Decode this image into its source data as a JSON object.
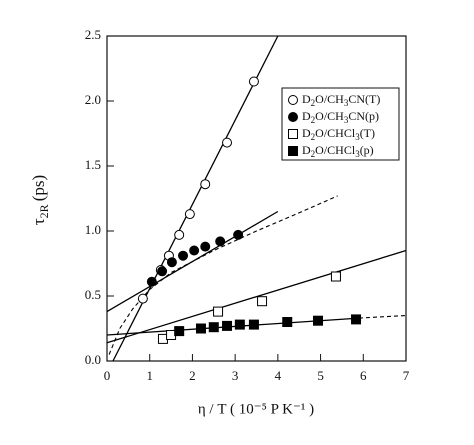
{
  "chart_data": {
    "type": "scatter",
    "x_label": "η / T ( 10⁻⁵ P K⁻¹ )",
    "y_label": {
      "symbol": "τ",
      "subscript": "2R",
      "unit": "(ps)"
    },
    "xlim": [
      0,
      7
    ],
    "ylim": [
      0,
      2.5
    ],
    "xticks": [
      0,
      1,
      2,
      3,
      4,
      5,
      6,
      7
    ],
    "yticks": [
      {
        "value": 0,
        "label": "0.0"
      },
      0.5,
      {
        "value": 1,
        "label": "1.0"
      },
      1.5,
      {
        "value": 2,
        "label": "2.0"
      },
      2.5
    ],
    "legend": "upper right",
    "series": [
      {
        "name": "D2O/CH3CN(T)",
        "marker": "open-circle",
        "color": "#000000",
        "x": [
          0.84,
          1.26,
          1.45,
          1.69,
          1.94,
          2.3,
          2.81,
          3.44
        ],
        "values": [
          0.48,
          0.7,
          0.81,
          0.97,
          1.13,
          1.36,
          1.68,
          2.15
        ],
        "fit": {
          "x": [
            0.14,
            4.0
          ],
          "y": [
            0,
            2.5
          ]
        }
      },
      {
        "name": "D2O/CH3CN(p)",
        "marker": "filled-circle",
        "color": "#000000",
        "x": [
          1.05,
          1.29,
          1.52,
          1.78,
          2.04,
          2.3,
          2.65,
          3.07
        ],
        "values": [
          0.61,
          0.69,
          0.76,
          0.81,
          0.85,
          0.88,
          0.92,
          0.97
        ],
        "fit": {
          "x": [
            0,
            4.0
          ],
          "y": [
            0.38,
            1.15
          ]
        },
        "dashed": {
          "x": [
            0.05,
            0.3,
            0.6,
            1.0,
            1.5,
            2.5,
            3.5,
            4.5,
            5.4
          ],
          "y": [
            0.05,
            0.25,
            0.4,
            0.55,
            0.68,
            0.85,
            1.0,
            1.14,
            1.27
          ]
        }
      },
      {
        "name": "D2O/CHCl3(T)",
        "marker": "open-square",
        "color": "#000000",
        "x": [
          1.31,
          1.5,
          2.6,
          3.63,
          5.36
        ],
        "values": [
          0.17,
          0.2,
          0.38,
          0.46,
          0.65
        ],
        "fit": {
          "x": [
            0,
            7
          ],
          "y": [
            0.14,
            0.85
          ]
        }
      },
      {
        "name": "D2O/CHCl3(p)",
        "marker": "filled-square",
        "color": "#000000",
        "x": [
          1.69,
          2.2,
          2.5,
          2.81,
          3.11,
          3.44,
          4.22,
          4.94,
          5.83
        ],
        "values": [
          0.23,
          0.25,
          0.26,
          0.27,
          0.28,
          0.28,
          0.3,
          0.31,
          0.32
        ],
        "fit": {
          "x": [
            0,
            5.9
          ],
          "y": [
            0.2,
            0.33
          ]
        },
        "dashed": {
          "x": [
            5.9,
            7
          ],
          "y": [
            0.33,
            0.35
          ]
        }
      }
    ]
  }
}
